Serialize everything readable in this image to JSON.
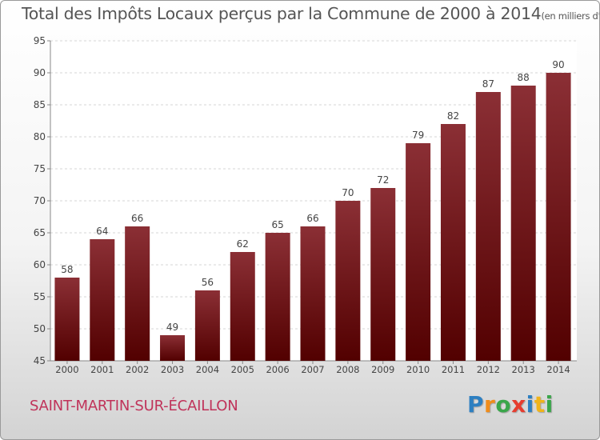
{
  "chart_data": {
    "type": "bar",
    "title": "Total des Impôts Locaux perçus par la Commune de 2000 à 2014",
    "unit_label": "(en milliers d'€)",
    "categories": [
      "2000",
      "2001",
      "2002",
      "2003",
      "2004",
      "2005",
      "2006",
      "2007",
      "2008",
      "2009",
      "2010",
      "2011",
      "2012",
      "2013",
      "2014"
    ],
    "values": [
      58,
      64,
      66,
      49,
      56,
      62,
      65,
      66,
      70,
      72,
      79,
      82,
      87,
      88,
      90
    ],
    "ylim": [
      45,
      95
    ],
    "yticks": [
      45,
      50,
      55,
      60,
      65,
      70,
      75,
      80,
      85,
      90,
      95
    ],
    "xlabel": "",
    "ylabel": "",
    "grid": true,
    "bar_color_top": "#8b2f35",
    "bar_color_bottom": "#520000"
  },
  "footer": {
    "commune": "SAINT-MARTIN-SUR-ÉCAILLON"
  },
  "logo": {
    "letters": [
      "P",
      "r",
      "o",
      "x",
      "i",
      "t",
      "i"
    ],
    "colors": [
      "#2d7fc1",
      "#f08c1a",
      "#3aa64a",
      "#e63c2f",
      "#2d7fc1",
      "#f0b41a",
      "#3aa64a"
    ]
  }
}
